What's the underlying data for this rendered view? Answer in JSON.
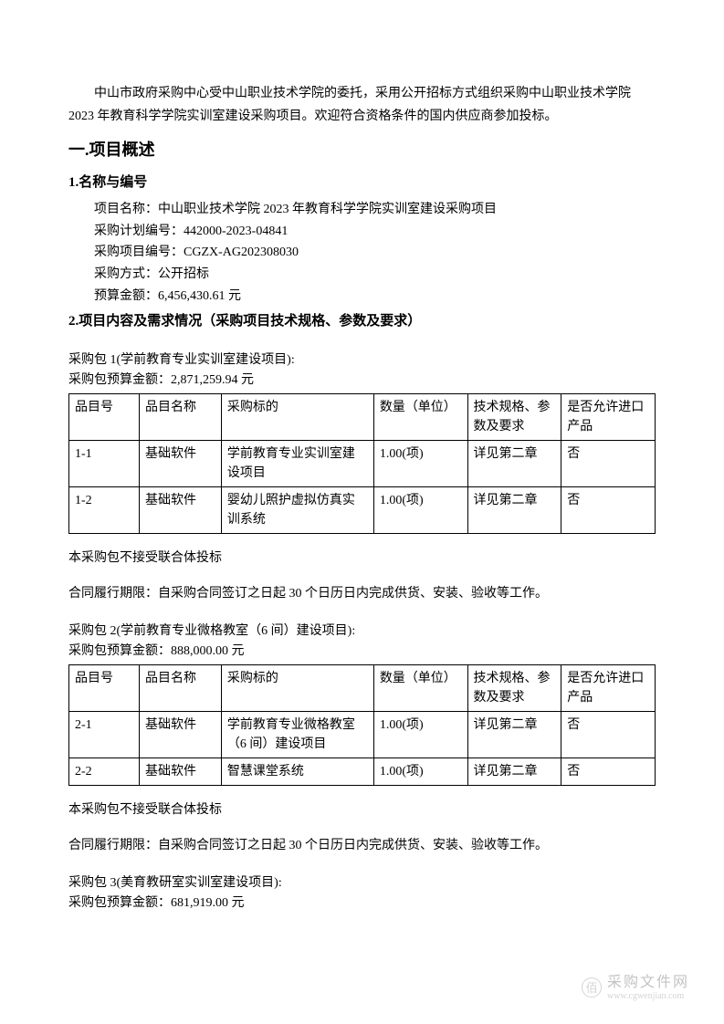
{
  "intro": "中山市政府采购中心受中山职业技术学院的委托，采用公开招标方式组织采购中山职业技术学院 2023 年教育科学学院实训室建设采购项目。欢迎符合资格条件的国内供应商参加投标。",
  "section1": {
    "heading": "一.项目概述",
    "sub1": {
      "heading": "1.名称与编号",
      "rows": [
        {
          "label": "项目名称：",
          "value": "中山职业技术学院 2023 年教育科学学院实训室建设采购项目"
        },
        {
          "label": "采购计划编号：",
          "value": "442000-2023-04841"
        },
        {
          "label": "采购项目编号：",
          "value": "CGZX-AG202308030"
        },
        {
          "label": "采购方式：",
          "value": "公开招标"
        },
        {
          "label": "预算金额：",
          "value": "6,456,430.61 元"
        }
      ]
    },
    "sub2": {
      "heading": "2.项目内容及需求情况（采购项目技术规格、参数及要求）"
    }
  },
  "tableHeaders": {
    "id": "品目号",
    "name": "品目名称",
    "subject": "采购标的",
    "qty": "数量（单位）",
    "spec": "技术规格、参数及要求",
    "import": "是否允许进口产品"
  },
  "package1": {
    "title": "采购包 1(学前教育专业实训室建设项目):",
    "budget": "采购包预算金额：2,871,259.94 元",
    "rows": [
      {
        "id": "1-1",
        "name": "基础软件",
        "subject": "学前教育专业实训室建设项目",
        "qty": "1.00(项)",
        "spec": "详见第二章",
        "import": "否"
      },
      {
        "id": "1-2",
        "name": "基础软件",
        "subject": "婴幼儿照护虚拟仿真实训系统",
        "qty": "1.00(项)",
        "spec": "详见第二章",
        "import": "否"
      }
    ],
    "note": "本采购包不接受联合体投标",
    "contract": "合同履行期限：自采购合同签订之日起 30 个日历日内完成供货、安装、验收等工作。"
  },
  "package2": {
    "title": "采购包 2(学前教育专业微格教室（6 间）建设项目):",
    "budget": "采购包预算金额：888,000.00 元",
    "rows": [
      {
        "id": "2-1",
        "name": "基础软件",
        "subject": "学前教育专业微格教室（6 间）建设项目",
        "qty": "1.00(项)",
        "spec": "详见第二章",
        "import": "否"
      },
      {
        "id": "2-2",
        "name": "基础软件",
        "subject": "智慧课堂系统",
        "qty": "1.00(项)",
        "spec": "详见第二章",
        "import": "否"
      }
    ],
    "note": "本采购包不接受联合体投标",
    "contract": "合同履行期限：自采购合同签订之日起 30 个日历日内完成供货、安装、验收等工作。"
  },
  "package3": {
    "title": "采购包 3(美育教研室实训室建设项目):",
    "budget": "采购包预算金额：681,919.00 元"
  },
  "watermark": {
    "icon": "佰",
    "main": "采购文件网",
    "url": "www.cgwenjian.com"
  },
  "colors": {
    "text": "#000000",
    "background": "#ffffff",
    "border": "#000000",
    "watermark": "#888888"
  }
}
